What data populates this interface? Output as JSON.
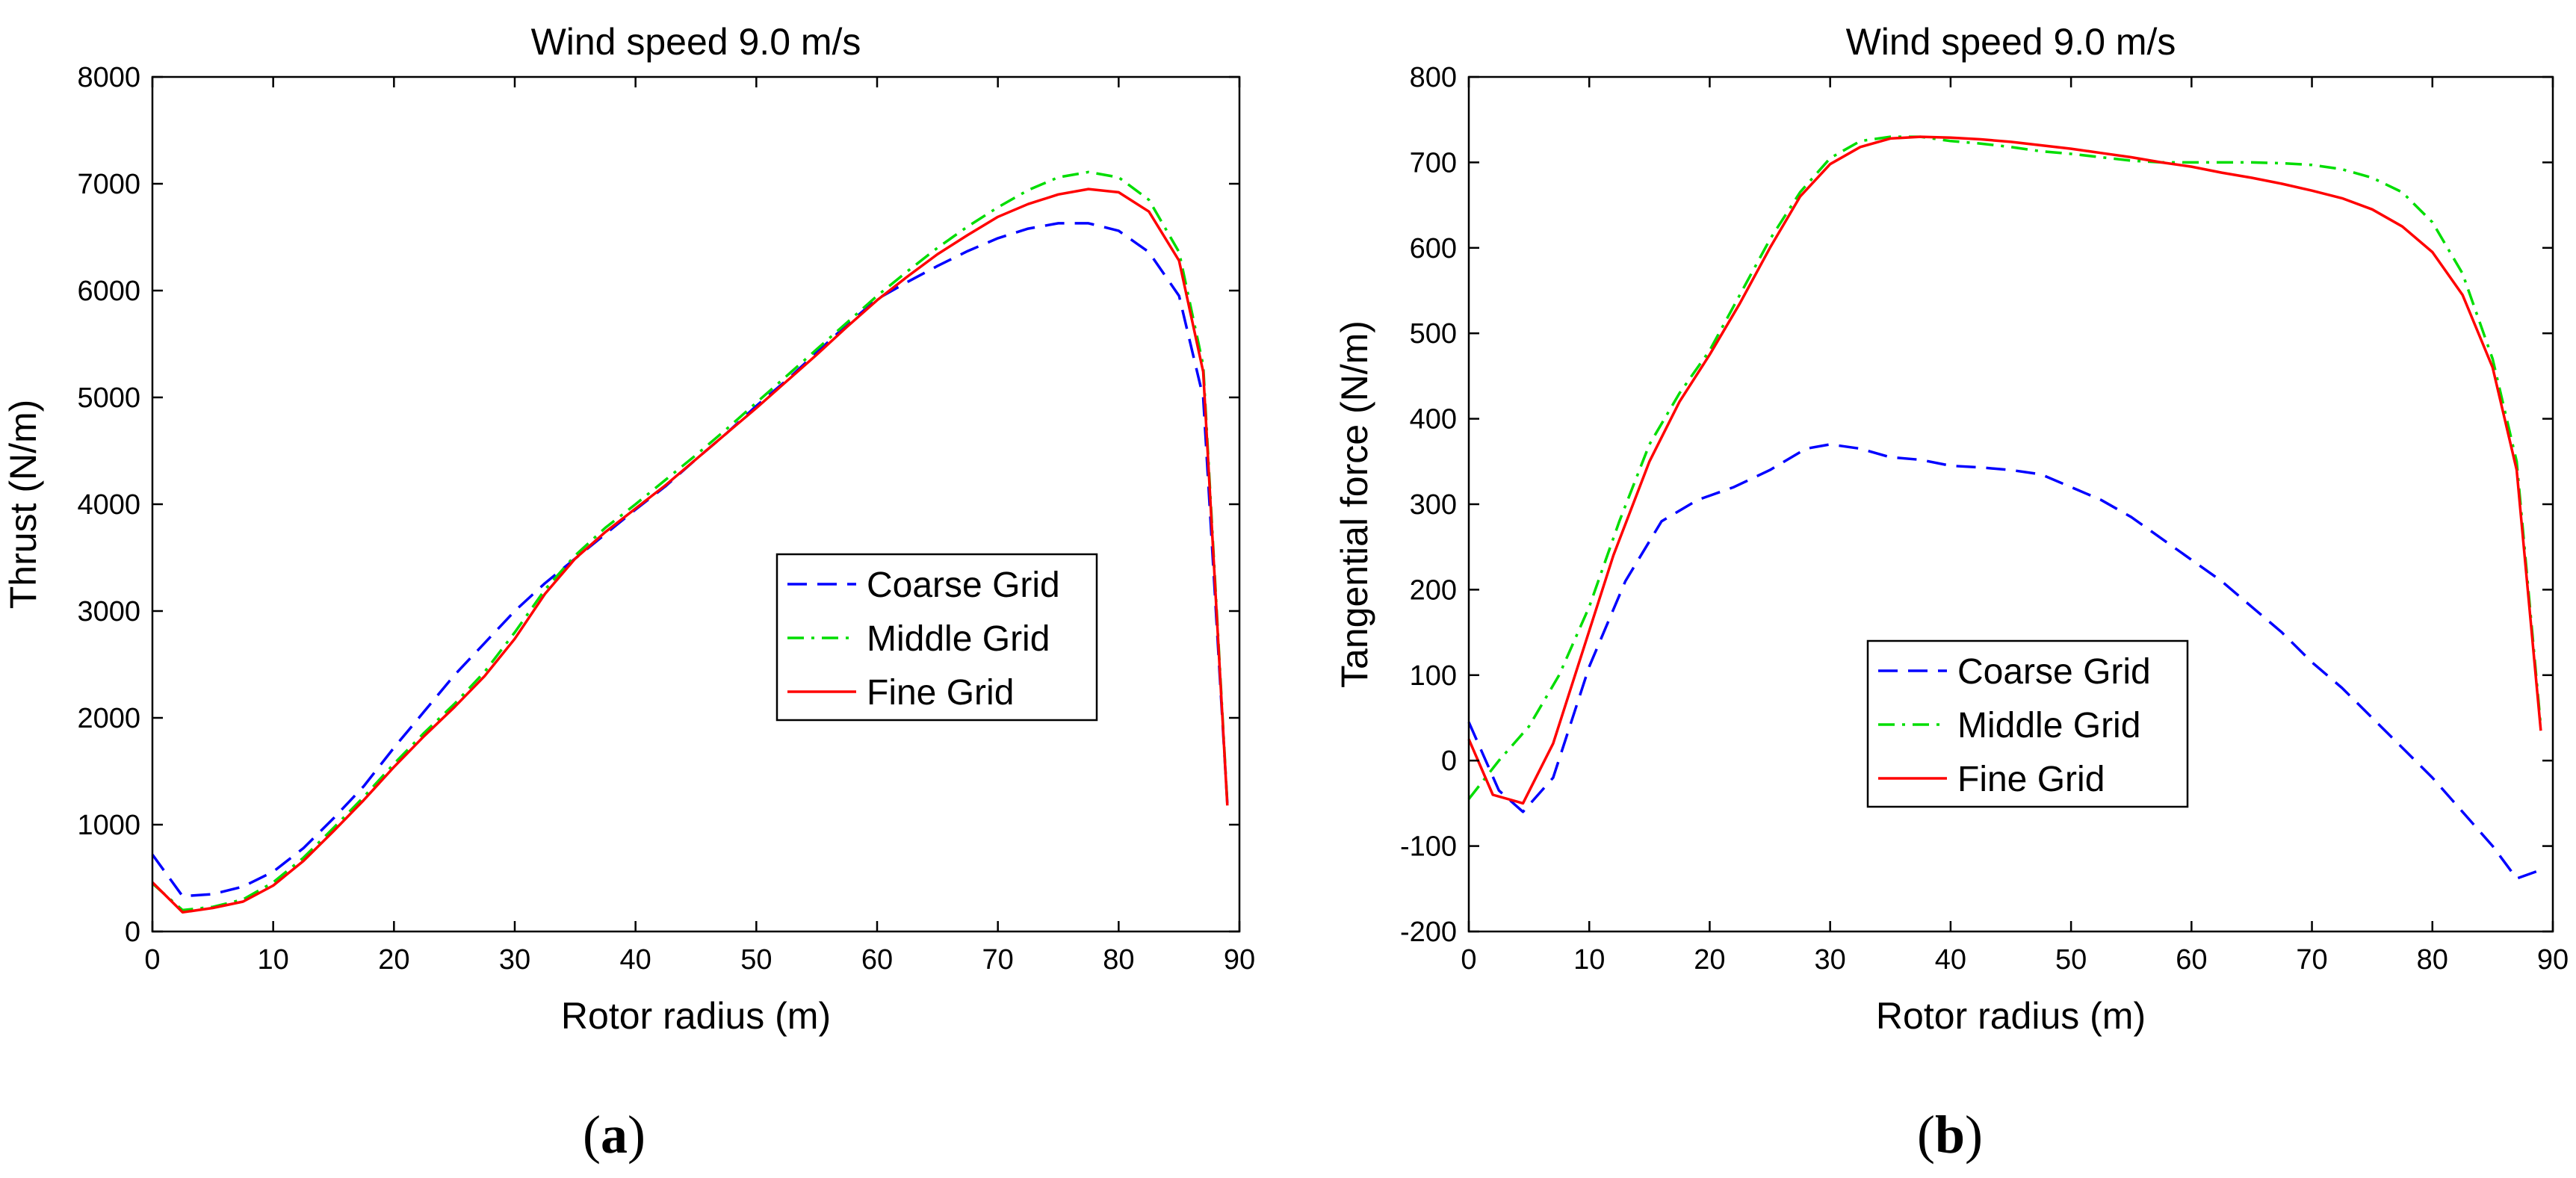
{
  "colors": {
    "coarse": "#0000ff",
    "middle": "#00dd00",
    "fine": "#ff0000",
    "axis": "#000000"
  },
  "chart_data": [
    {
      "type": "line",
      "title": "Wind speed 9.0 m/s",
      "xlabel": "Rotor radius (m)",
      "ylabel": "Thrust (N/m)",
      "xlim": [
        0,
        90
      ],
      "ylim": [
        0,
        8000
      ],
      "xticks": [
        0,
        10,
        20,
        30,
        40,
        50,
        60,
        70,
        80,
        90
      ],
      "yticks": [
        0,
        1000,
        2000,
        3000,
        4000,
        5000,
        6000,
        7000,
        8000
      ],
      "legend_position": "center-right",
      "caption": "(a)",
      "caption_letter": "a",
      "series": [
        {
          "name": "Coarse Grid",
          "style": "dashed",
          "color_key": "coarse",
          "x": [
            0,
            2.5,
            5,
            7.5,
            10,
            12.5,
            15,
            17.5,
            20,
            22.5,
            25,
            27.5,
            30,
            32.5,
            35,
            37.5,
            40,
            42.5,
            45,
            47.5,
            50,
            52.5,
            55,
            57.5,
            60,
            62.5,
            65,
            67.5,
            70,
            72.5,
            75,
            77.5,
            80,
            82.5,
            85,
            87,
            89
          ],
          "y": [
            720,
            330,
            350,
            420,
            560,
            780,
            1060,
            1360,
            1720,
            2060,
            2400,
            2700,
            3000,
            3260,
            3490,
            3720,
            3950,
            4170,
            4420,
            4660,
            4920,
            5160,
            5420,
            5680,
            5920,
            6080,
            6230,
            6370,
            6490,
            6580,
            6630,
            6630,
            6560,
            6360,
            5950,
            5000,
            1200
          ]
        },
        {
          "name": "Middle Grid",
          "style": "dashdot",
          "color_key": "middle",
          "x": [
            0,
            2.5,
            5,
            7.5,
            10,
            12.5,
            15,
            17.5,
            20,
            22.5,
            25,
            27.5,
            30,
            32.5,
            35,
            37.5,
            40,
            42.5,
            45,
            47.5,
            50,
            52.5,
            55,
            57.5,
            60,
            62.5,
            65,
            67.5,
            70,
            72.5,
            75,
            77.5,
            80,
            82.5,
            85,
            87,
            89
          ],
          "y": [
            450,
            200,
            230,
            300,
            460,
            690,
            970,
            1260,
            1570,
            1860,
            2130,
            2430,
            2800,
            3200,
            3520,
            3780,
            4000,
            4230,
            4460,
            4700,
            4950,
            5200,
            5450,
            5700,
            5950,
            6180,
            6400,
            6600,
            6780,
            6940,
            7060,
            7110,
            7060,
            6850,
            6360,
            5300,
            1200
          ]
        },
        {
          "name": "Fine Grid",
          "style": "solid",
          "color_key": "fine",
          "x": [
            0,
            2.5,
            5,
            7.5,
            10,
            12.5,
            15,
            17.5,
            20,
            22.5,
            25,
            27.5,
            30,
            32.5,
            35,
            37.5,
            40,
            42.5,
            45,
            47.5,
            50,
            52.5,
            55,
            57.5,
            60,
            62.5,
            65,
            67.5,
            70,
            72.5,
            75,
            77.5,
            80,
            82.5,
            85,
            87,
            89
          ],
          "y": [
            460,
            180,
            220,
            280,
            430,
            660,
            940,
            1230,
            1540,
            1830,
            2100,
            2390,
            2740,
            3160,
            3490,
            3740,
            3960,
            4180,
            4420,
            4660,
            4900,
            5150,
            5400,
            5660,
            5910,
            6130,
            6340,
            6520,
            6690,
            6810,
            6900,
            6950,
            6920,
            6740,
            6280,
            5240,
            1180
          ]
        }
      ]
    },
    {
      "type": "line",
      "title": "Wind speed 9.0 m/s",
      "xlabel": "Rotor radius (m)",
      "ylabel": "Tangential force (N/m)",
      "xlim": [
        0,
        90
      ],
      "ylim": [
        -200,
        800
      ],
      "xticks": [
        0,
        10,
        20,
        30,
        40,
        50,
        60,
        70,
        80,
        90
      ],
      "yticks": [
        -200,
        -100,
        0,
        100,
        200,
        300,
        400,
        500,
        600,
        700,
        800
      ],
      "legend_position": "center-left-bottom",
      "caption": "(b)",
      "caption_letter": "b",
      "series": [
        {
          "name": "Coarse Grid",
          "style": "dashed",
          "color_key": "coarse",
          "x": [
            0,
            2.5,
            4.5,
            7,
            10,
            13,
            16,
            19,
            22,
            25,
            28,
            30,
            32.5,
            35,
            37.5,
            40,
            42.5,
            45,
            47.5,
            50,
            52.5,
            55,
            57.5,
            60,
            62.5,
            65,
            67.5,
            70,
            72.5,
            75,
            77.5,
            80,
            82.5,
            85,
            87,
            89
          ],
          "y": [
            45,
            -35,
            -60,
            -20,
            110,
            210,
            280,
            305,
            320,
            340,
            365,
            370,
            365,
            355,
            352,
            345,
            343,
            340,
            335,
            320,
            305,
            285,
            260,
            235,
            210,
            180,
            150,
            115,
            85,
            50,
            15,
            -20,
            -60,
            -100,
            -138,
            -128
          ]
        },
        {
          "name": "Middle Grid",
          "style": "dashdot",
          "color_key": "middle",
          "x": [
            0,
            2.5,
            5,
            7.5,
            10,
            12.5,
            15,
            17.5,
            20,
            22.5,
            25,
            27.5,
            30,
            32.5,
            35,
            37.5,
            40,
            42.5,
            45,
            47.5,
            50,
            52.5,
            55,
            57.5,
            60,
            62.5,
            65,
            67.5,
            70,
            72.5,
            75,
            77.5,
            80,
            82.5,
            85,
            87,
            89
          ],
          "y": [
            -45,
            0,
            40,
            100,
            180,
            280,
            370,
            430,
            480,
            545,
            610,
            665,
            705,
            725,
            730,
            730,
            725,
            722,
            718,
            713,
            710,
            706,
            702,
            700,
            700,
            700,
            700,
            699,
            697,
            692,
            682,
            665,
            630,
            570,
            470,
            350,
            40
          ]
        },
        {
          "name": "Fine Grid",
          "style": "solid",
          "color_key": "fine",
          "x": [
            0,
            2,
            4.5,
            7,
            9.5,
            12,
            15,
            17.5,
            20,
            22.5,
            25,
            27.5,
            30,
            32.5,
            35,
            37.5,
            40,
            42.5,
            45,
            47.5,
            50,
            52.5,
            55,
            57.5,
            60,
            62.5,
            65,
            67.5,
            70,
            72.5,
            75,
            77.5,
            80,
            82.5,
            85,
            87,
            89
          ],
          "y": [
            25,
            -40,
            -50,
            20,
            130,
            240,
            350,
            420,
            475,
            535,
            600,
            660,
            698,
            718,
            728,
            730,
            729,
            727,
            724,
            720,
            716,
            711,
            706,
            700,
            695,
            688,
            682,
            675,
            667,
            658,
            645,
            625,
            595,
            545,
            460,
            340,
            35
          ]
        }
      ]
    }
  ]
}
